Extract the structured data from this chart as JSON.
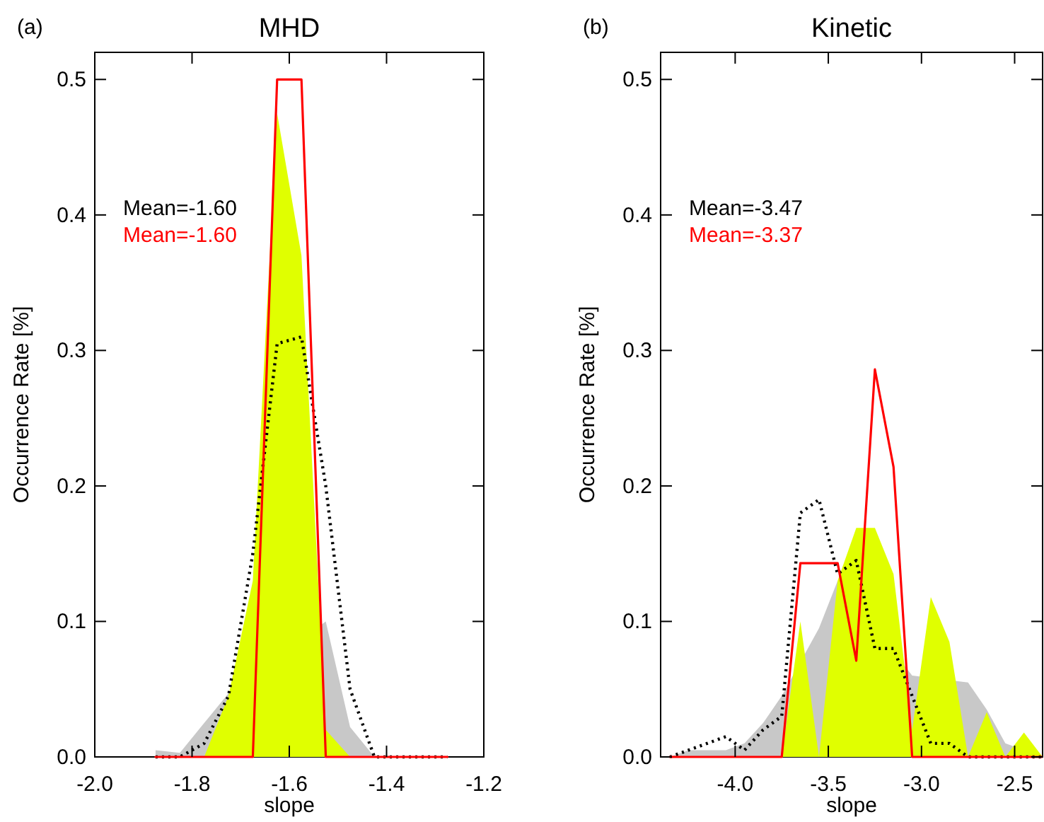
{
  "chart_data": [
    {
      "type": "area",
      "title": "MHD",
      "xlabel": "slope",
      "ylabel": "Occurrence Rate [%]",
      "annotations": [
        "(a)",
        "Mean=-1.60",
        "Mean=-1.60"
      ],
      "x": [
        -1.875,
        -1.825,
        -1.775,
        -1.725,
        -1.675,
        -1.625,
        -1.575,
        -1.525,
        -1.475,
        -1.425,
        -1.375,
        -1.325,
        -1.275
      ],
      "xlim": [
        -2.0,
        -1.2
      ],
      "xticks": [
        {
          "value": -2.0,
          "label": "-2.0"
        },
        -1.8,
        -1.6,
        -1.4,
        -1.2
      ],
      "ylim": [
        0,
        0.52
      ],
      "yticks": [
        {
          "value": 0,
          "label": "0.0"
        },
        0.1,
        0.2,
        0.3,
        0.4,
        0.5
      ],
      "series": [
        {
          "color": "#c8c8c8",
          "values": [
            0.005,
            0.003,
            0.025,
            0.047,
            null,
            null,
            null,
            0.1,
            0.022,
            0,
            0,
            0,
            0
          ]
        },
        {
          "color": "#e0ff00",
          "values": [
            0,
            0,
            0,
            0.045,
            0.13,
            0.475,
            0.37,
            0.02,
            0,
            0,
            0,
            0,
            0
          ]
        },
        {
          "type": "line",
          "color": "#000000",
          "line_style": "dotted",
          "values": [
            0,
            0,
            0.01,
            0.045,
            0.15,
            0.305,
            0.31,
            0.2,
            0.05,
            0,
            0,
            0,
            0
          ]
        },
        {
          "type": "line",
          "color": "#ff0000",
          "line_style": "solid",
          "values": [
            0,
            0,
            0,
            0,
            0,
            0.5,
            0.5,
            0,
            0,
            0,
            0,
            0,
            0
          ]
        }
      ]
    },
    {
      "type": "area",
      "title": "Kinetic",
      "xlabel": "slope",
      "ylabel": "Occurrence Rate [%]",
      "annotations": [
        "(b)",
        "Mean=-3.47",
        "Mean=-3.37"
      ],
      "x": [
        -4.35,
        -4.25,
        -4.15,
        -4.05,
        -3.95,
        -3.85,
        -3.75,
        -3.65,
        -3.55,
        -3.45,
        -3.35,
        -3.25,
        -3.15,
        -3.05,
        -2.95,
        -2.85,
        -2.75,
        -2.65,
        -2.55,
        -2.45,
        -2.35
      ],
      "xlim": [
        -4.4,
        -2.35
      ],
      "xticks": [
        {
          "value": -4.0,
          "label": "-4.0"
        },
        -3.5,
        {
          "value": -3.0,
          "label": "-3.0"
        },
        -2.5
      ],
      "ylim": [
        0,
        0.52
      ],
      "yticks": [
        {
          "value": 0,
          "label": "0.0"
        },
        0.1,
        0.2,
        0.3,
        0.4,
        0.5
      ],
      "series": [
        {
          "color": "#c8c8c8",
          "values": [
            0,
            0.005,
            0.005,
            0.005,
            0.01,
            0.025,
            0.045,
            null,
            0.095,
            0.13,
            null,
            null,
            null,
            0.06,
            null,
            null,
            0.055,
            0.035,
            0.01,
            null,
            0
          ]
        },
        {
          "color": "#e0ff00",
          "values": [
            0,
            0,
            0,
            0,
            0,
            0,
            0,
            0.1,
            0,
            0.13,
            0.169,
            0.169,
            0.135,
            0.02,
            0.118,
            0.085,
            0,
            0.033,
            0,
            0.018,
            0
          ]
        },
        {
          "type": "line",
          "color": "#000000",
          "line_style": "dotted",
          "values": [
            0,
            0.005,
            0.01,
            0.015,
            0.005,
            0.02,
            0.03,
            0.18,
            0.19,
            0.135,
            0.145,
            0.08,
            0.08,
            0.045,
            0.01,
            0.01,
            0,
            0,
            0,
            0,
            0
          ]
        },
        {
          "type": "line",
          "color": "#ff0000",
          "line_style": "solid",
          "values": [
            0,
            0,
            0,
            0,
            0,
            0,
            0,
            0.143,
            0.143,
            0.143,
            0.071,
            0.286,
            0.214,
            0,
            0,
            0,
            0,
            0,
            0,
            0,
            0
          ]
        }
      ]
    }
  ]
}
